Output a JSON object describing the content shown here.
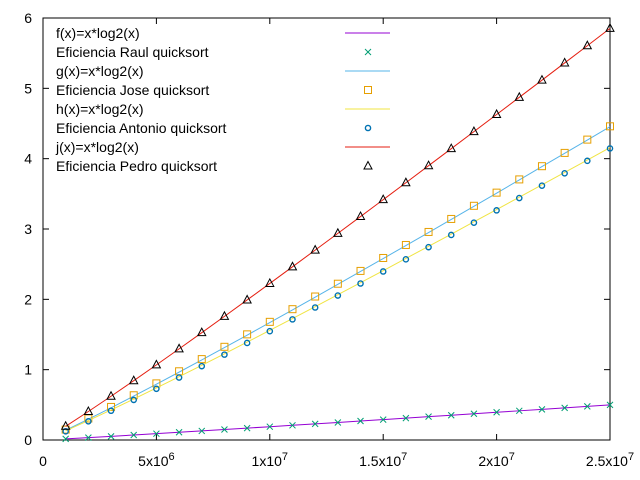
{
  "chart_data": {
    "type": "line",
    "xlim": [
      0,
      25000000
    ],
    "ylim": [
      0,
      6
    ],
    "x_ticks": [
      0,
      5000000,
      10000000,
      15000000,
      20000000,
      25000000
    ],
    "x_tick_labels": [
      {
        "mantissa": "0",
        "exponent": ""
      },
      {
        "mantissa": "5x10",
        "exponent": "6"
      },
      {
        "mantissa": "1x10",
        "exponent": "7"
      },
      {
        "mantissa": "1.5x10",
        "exponent": "7"
      },
      {
        "mantissa": "2x10",
        "exponent": "7"
      },
      {
        "mantissa": "2.5x10",
        "exponent": "7"
      }
    ],
    "y_ticks": [
      0,
      1,
      2,
      3,
      4,
      5,
      6
    ],
    "y_tick_labels": [
      "0",
      "1",
      "2",
      "3",
      "4",
      "5",
      "6"
    ],
    "grid": false,
    "legend_position": "top-left",
    "x": [
      1000000,
      2000000,
      3000000,
      4000000,
      5000000,
      6000000,
      7000000,
      8000000,
      9000000,
      10000000,
      11000000,
      12000000,
      13000000,
      14000000,
      15000000,
      16000000,
      17000000,
      18000000,
      19000000,
      20000000,
      21000000,
      22000000,
      23000000,
      24000000,
      25000000
    ],
    "series": [
      {
        "name": "f(x)=x*log2(x)",
        "kind": "line",
        "color": "#9400d3",
        "values": [
          0.016,
          0.034,
          0.052,
          0.071,
          0.09,
          0.11,
          0.129,
          0.149,
          0.169,
          0.189,
          0.209,
          0.229,
          0.249,
          0.27,
          0.29,
          0.311,
          0.332,
          0.352,
          0.373,
          0.394,
          0.415,
          0.436,
          0.457,
          0.478,
          0.499
        ]
      },
      {
        "name": "Eficiencia Raul quicksort",
        "kind": "points",
        "marker": "x",
        "color": "#009e73",
        "values": [
          0.016,
          0.034,
          0.052,
          0.071,
          0.09,
          0.11,
          0.129,
          0.149,
          0.169,
          0.189,
          0.209,
          0.229,
          0.249,
          0.27,
          0.29,
          0.311,
          0.332,
          0.352,
          0.373,
          0.394,
          0.415,
          0.436,
          0.457,
          0.478,
          0.499
        ]
      },
      {
        "name": "g(x)=x*log2(x)",
        "kind": "line",
        "color": "#56b4e9",
        "values": [
          0.14,
          0.296,
          0.458,
          0.624,
          0.793,
          0.965,
          1.138,
          1.314,
          1.491,
          1.67,
          1.85,
          2.031,
          2.213,
          2.396,
          2.58,
          2.765,
          2.95,
          3.136,
          3.323,
          3.51,
          3.698,
          3.887,
          4.076,
          4.265,
          4.455
        ]
      },
      {
        "name": "Eficiencia Jose quicksort",
        "kind": "points",
        "marker": "square",
        "color": "#e69f00",
        "values": [
          0.148,
          0.306,
          0.47,
          0.636,
          0.805,
          0.977,
          1.15,
          1.325,
          1.502,
          1.68,
          1.86,
          2.04,
          2.222,
          2.404,
          2.588,
          2.773,
          2.958,
          3.143,
          3.33,
          3.517,
          3.705,
          3.893,
          4.082,
          4.271,
          4.46
        ]
      },
      {
        "name": "h(x)=x*log2(x)",
        "kind": "line",
        "color": "#f0e442",
        "values": [
          0.13,
          0.276,
          0.427,
          0.582,
          0.74,
          0.9,
          1.062,
          1.226,
          1.392,
          1.559,
          1.727,
          1.896,
          2.066,
          2.237,
          2.408,
          2.581,
          2.754,
          2.927,
          3.102,
          3.277,
          3.452,
          3.628,
          3.804,
          3.981,
          4.158
        ]
      },
      {
        "name": "Eficiencia Antonio quicksort",
        "kind": "points",
        "marker": "circle",
        "color": "#0072b2",
        "values": [
          0.123,
          0.266,
          0.416,
          0.57,
          0.728,
          0.888,
          1.05,
          1.214,
          1.38,
          1.547,
          1.715,
          1.884,
          2.054,
          2.225,
          2.396,
          2.569,
          2.742,
          2.915,
          3.09,
          3.265,
          3.44,
          3.616,
          3.792,
          3.969,
          4.146
        ]
      },
      {
        "name": "j(x)=x*log2(x)",
        "kind": "line",
        "color": "#e51e10",
        "values": [
          0.195,
          0.405,
          0.622,
          0.843,
          1.068,
          1.296,
          1.526,
          1.758,
          1.991,
          2.226,
          2.462,
          2.7,
          2.938,
          3.177,
          3.417,
          3.658,
          3.9,
          4.142,
          4.385,
          4.628,
          4.872,
          5.116,
          5.361,
          5.606,
          5.852
        ]
      },
      {
        "name": "Eficiencia Pedro quicksort",
        "kind": "points",
        "marker": "triangle",
        "color": "#000000",
        "values": [
          0.195,
          0.405,
          0.622,
          0.843,
          1.068,
          1.296,
          1.526,
          1.758,
          1.991,
          2.226,
          2.462,
          2.7,
          2.938,
          3.177,
          3.417,
          3.658,
          3.9,
          4.142,
          4.385,
          4.628,
          4.872,
          5.116,
          5.361,
          5.606,
          5.852
        ]
      }
    ]
  }
}
